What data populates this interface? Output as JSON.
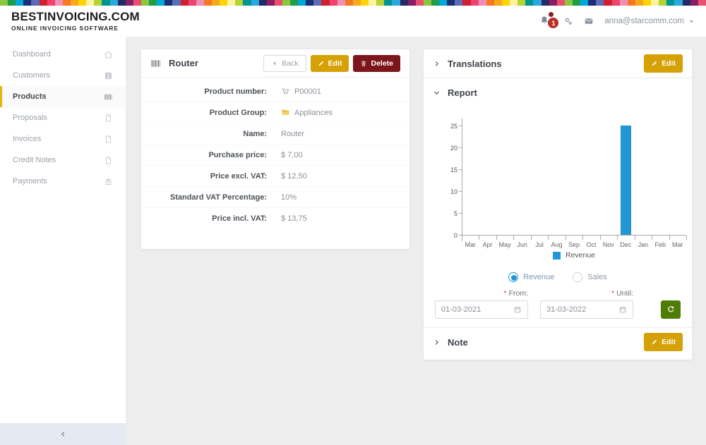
{
  "theme": {
    "colors": {
      "gold": "#d5a104",
      "danger": "#7d161b",
      "green": "#4e7d05",
      "blue": "#2397d3",
      "badge": "#bf3127",
      "content_bg": "#ededee",
      "side_footer": "#e4e9f2",
      "active_border": "#e3b410"
    },
    "rainbow_palette": [
      "#8cc63f",
      "#1f9d49",
      "#00a8d8",
      "#1b2f77",
      "#5b6db4",
      "#d01f2e",
      "#ef426f",
      "#f08fb6",
      "#f47920",
      "#f5a81c",
      "#ffd400",
      "#fff3a0",
      "#b5d334",
      "#00958f",
      "#29a8df",
      "#232b66",
      "#8a1e64",
      "#e94f6e"
    ]
  },
  "header": {
    "logo_title": "BESTINVOICING.COM",
    "logo_subtitle": "ONLINE INVOICING SOFTWARE",
    "notification_count": "1",
    "user_email": "anna@starcomm.com"
  },
  "sidebar": {
    "items": [
      {
        "label": "Dashboard",
        "icon": "home-icon",
        "active": false
      },
      {
        "label": "Customers",
        "icon": "id-badge-icon",
        "active": false
      },
      {
        "label": "Products",
        "icon": "barcode-icon",
        "active": true
      },
      {
        "label": "Proposals",
        "icon": "file-pdf-icon",
        "active": false
      },
      {
        "label": "Invoices",
        "icon": "file-pdf-icon",
        "active": false
      },
      {
        "label": "Credit Notes",
        "icon": "file-pdf-icon",
        "active": false
      },
      {
        "label": "Payments",
        "icon": "bank-icon",
        "active": false
      }
    ]
  },
  "product_panel": {
    "title": "Router",
    "buttons": {
      "back": "Back",
      "edit": "Edit",
      "delete": "Delete"
    },
    "fields": [
      {
        "label": "Product number:",
        "value": "P00001",
        "value_icon": "cart-icon"
      },
      {
        "label": "Product Group:",
        "value": "Appliances",
        "value_icon": "folder-icon"
      },
      {
        "label": "Name:",
        "value": "Router"
      },
      {
        "label": "Purchase price:",
        "value": "$ 7,00"
      },
      {
        "label": "Price excl. VAT:",
        "value": "$ 12,50"
      },
      {
        "label": "Standard VAT Percentage:",
        "value": "10%"
      },
      {
        "label": "Price incl. VAT:",
        "value": "$ 13,75"
      }
    ]
  },
  "right_panel": {
    "translations": {
      "title": "Translations",
      "edit_label": "Edit"
    },
    "report": {
      "title": "Report",
      "radio_options": [
        {
          "label": "Revenue",
          "selected": true
        },
        {
          "label": "Sales",
          "selected": false
        }
      ],
      "from_label": "From:",
      "until_label": "Until:",
      "from_value": "01-03-2021",
      "until_value": "31-03-2022"
    },
    "note": {
      "title": "Note",
      "edit_label": "Edit"
    }
  },
  "chart_data": {
    "type": "bar",
    "categories": [
      "Mar",
      "Apr",
      "May",
      "Jun",
      "Jul",
      "Aug",
      "Sep",
      "Oct",
      "Nov",
      "Dec",
      "Jan",
      "Feb",
      "Mar"
    ],
    "series": [
      {
        "name": "Revenue",
        "color": "#2397d3",
        "values": [
          0,
          0,
          0,
          0,
          0,
          0,
          0,
          0,
          0,
          25,
          0,
          0,
          0
        ]
      }
    ],
    "title": "",
    "xlabel": "",
    "ylabel": "",
    "ylim": [
      0,
      25
    ],
    "yticks": [
      0,
      5,
      10,
      15,
      20,
      25
    ],
    "grid": false,
    "legend_position": "bottom"
  }
}
